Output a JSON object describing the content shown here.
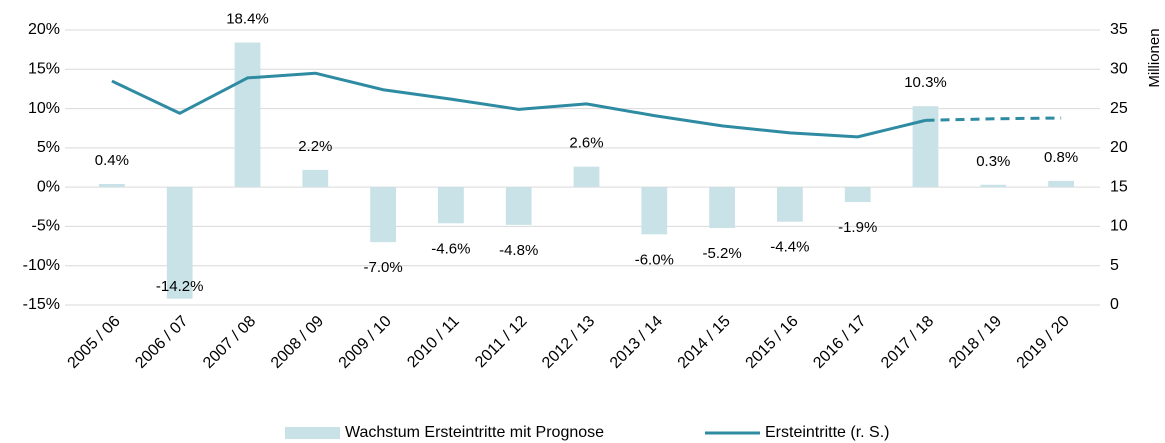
{
  "chart_data": {
    "type": "bar_line",
    "categories": [
      "2005 / 06",
      "2006 / 07",
      "2007 / 08",
      "2008 / 09",
      "2009 / 10",
      "2010 / 11",
      "2011 / 12",
      "2012 / 13",
      "2013 / 14",
      "2014 / 15",
      "2015 / 16",
      "2016 / 17",
      "2017 / 18",
      "2018 / 19",
      "2019 / 20"
    ],
    "series": [
      {
        "name": "Wachstum Ersteintritte mit Prognose",
        "type": "bar",
        "color": "#c8e2e7",
        "values": [
          0.4,
          -14.2,
          18.4,
          2.2,
          -7.0,
          -4.6,
          -4.8,
          2.6,
          -6.0,
          -5.2,
          -4.4,
          -1.9,
          10.3,
          0.3,
          0.8
        ],
        "value_labels": [
          "0.4%",
          "-14.2%",
          "18.4%",
          "2.2%",
          "-7.0%",
          "-4.6%",
          "-4.8%",
          "2.6%",
          "-6.0%",
          "-5.2%",
          "-4.4%",
          "-1.9%",
          "10.3%",
          "0.3%",
          "0.8%"
        ]
      },
      {
        "name": "Ersteintritte (r. S.)",
        "type": "line",
        "axis": "y2",
        "color": "#2e8ba2",
        "dashed_from": "2017 / 18",
        "values": [
          28.5,
          24.4,
          28.9,
          29.5,
          27.4,
          26.2,
          24.9,
          25.6,
          24.1,
          22.8,
          21.9,
          21.4,
          23.5,
          23.7,
          23.8
        ]
      }
    ],
    "ylim": [
      -15,
      20
    ],
    "yticks": [
      {
        "value": -15,
        "label": "-15%"
      },
      {
        "value": -10,
        "label": "-10%"
      },
      {
        "value": -5,
        "label": "-5%"
      },
      {
        "value": 0,
        "label": "0%"
      },
      {
        "value": 5,
        "label": "5%"
      },
      {
        "value": 10,
        "label": "10%"
      },
      {
        "value": 15,
        "label": "15%"
      },
      {
        "value": 20,
        "label": "20%"
      }
    ],
    "y2lim": [
      0,
      35
    ],
    "y2ticks": [
      0,
      5,
      10,
      15,
      20,
      25,
      30,
      35
    ],
    "y2label": "Millionen",
    "grid": true,
    "legend": "bottom"
  }
}
